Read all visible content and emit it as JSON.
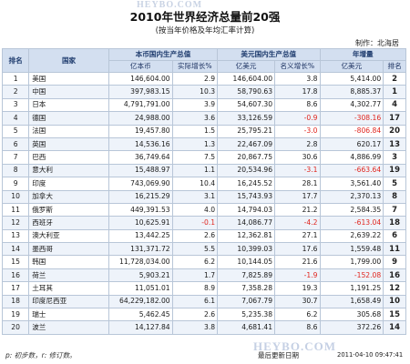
{
  "watermark_text": "HEYBO.COM",
  "title": "2010年世界经济总量前20强",
  "subtitle": "(按当年价格及年均汇率计算)",
  "maker": "制作：北海居",
  "headers": {
    "rank": "排名",
    "country": "国家",
    "local_gdp_group": "本币国内生产总值",
    "local_gdp": "亿本币",
    "real_growth": "实际增长%",
    "usd_gdp_group": "美元国内生产总值",
    "usd_gdp": "亿美元",
    "nominal_growth": "名义增长%",
    "annual_increase_group": "年增量",
    "annual_increase": "亿美元",
    "rank_change": "排名"
  },
  "rows": [
    {
      "rank": "1",
      "country": "美国",
      "local": "146,604.00",
      "real": "2.9",
      "usd": "146,604.00",
      "nominal": "3.8",
      "increase": "5,414.00",
      "prev_rank": "2",
      "negative": false
    },
    {
      "rank": "2",
      "country": "中国",
      "local": "397,983.15",
      "real": "10.3",
      "usd": "58,790.63",
      "nominal": "17.8",
      "increase": "8,885.37",
      "prev_rank": "1",
      "negative": false
    },
    {
      "rank": "3",
      "country": "日本",
      "local": "4,791,791.00",
      "real": "3.9",
      "usd": "54,607.30",
      "nominal": "8.6",
      "increase": "4,302.77",
      "prev_rank": "4",
      "negative": false
    },
    {
      "rank": "4",
      "country": "德国",
      "local": "24,988.00",
      "real": "3.6",
      "usd": "33,126.59",
      "nominal": "-0.9",
      "increase": "-308.16",
      "prev_rank": "17",
      "negative": true
    },
    {
      "rank": "5",
      "country": "法国",
      "local": "19,457.80",
      "real": "1.5",
      "usd": "25,795.21",
      "nominal": "-3.0",
      "increase": "-806.84",
      "prev_rank": "20",
      "negative": true
    },
    {
      "rank": "6",
      "country": "英国",
      "local": "14,536.16",
      "real": "1.3",
      "usd": "22,467.09",
      "nominal": "2.8",
      "increase": "620.17",
      "prev_rank": "13",
      "negative": false
    },
    {
      "rank": "7",
      "country": "巴西",
      "local": "36,749.64",
      "real": "7.5",
      "usd": "20,867.75",
      "nominal": "30.6",
      "increase": "4,886.99",
      "prev_rank": "3",
      "negative": false
    },
    {
      "rank": "8",
      "country": "意大利",
      "local": "15,488.97",
      "real": "1.1",
      "usd": "20,534.96",
      "nominal": "-3.1",
      "increase": "-663.64",
      "prev_rank": "19",
      "negative": true
    },
    {
      "rank": "9",
      "country": "印度",
      "local": "743,069.90",
      "real": "10.4",
      "usd": "16,245.52",
      "nominal": "28.1",
      "increase": "3,561.40",
      "prev_rank": "5",
      "negative": false
    },
    {
      "rank": "10",
      "country": "加拿大",
      "local": "16,215.29",
      "real": "3.1",
      "usd": "15,743.93",
      "nominal": "17.7",
      "increase": "2,370.13",
      "prev_rank": "8",
      "negative": false
    },
    {
      "rank": "11",
      "country": "俄罗斯",
      "local": "449,391.53",
      "real": "4.0",
      "usd": "14,794.03",
      "nominal": "21.2",
      "increase": "2,584.35",
      "prev_rank": "7",
      "negative": false
    },
    {
      "rank": "12",
      "country": "西班牙",
      "local": "10,625.91",
      "real": "-0.1",
      "usd": "14,086.77",
      "nominal": "-4.2",
      "increase": "-613.04",
      "prev_rank": "18",
      "negative": true
    },
    {
      "rank": "13",
      "country": "澳大利亚",
      "local": "13,442.25",
      "real": "2.6",
      "usd": "12,362.81",
      "nominal": "27.1",
      "increase": "2,639.22",
      "prev_rank": "6",
      "negative": false
    },
    {
      "rank": "14",
      "country": "墨西哥",
      "local": "131,371.72",
      "real": "5.5",
      "usd": "10,399.03",
      "nominal": "17.6",
      "increase": "1,559.48",
      "prev_rank": "11",
      "negative": false
    },
    {
      "rank": "15",
      "country": "韩国",
      "local": "11,728,034.00",
      "real": "6.2",
      "usd": "10,144.05",
      "nominal": "21.6",
      "increase": "1,799.00",
      "prev_rank": "9",
      "negative": false
    },
    {
      "rank": "16",
      "country": "荷兰",
      "local": "5,903.21",
      "real": "1.7",
      "usd": "7,825.89",
      "nominal": "-1.9",
      "increase": "-152.08",
      "prev_rank": "16",
      "negative": true
    },
    {
      "rank": "17",
      "country": "土耳其",
      "local": "11,051.01",
      "real": "8.9",
      "usd": "7,358.28",
      "nominal": "19.3",
      "increase": "1,191.25",
      "prev_rank": "12",
      "negative": false
    },
    {
      "rank": "18",
      "country": "印度尼西亚",
      "local": "64,229,182.00",
      "real": "6.1",
      "usd": "7,067.79",
      "nominal": "30.7",
      "increase": "1,658.49",
      "prev_rank": "10",
      "negative": false
    },
    {
      "rank": "19",
      "country": "瑞士",
      "local": "5,462.45",
      "real": "2.6",
      "usd": "5,235.38",
      "nominal": "6.2",
      "increase": "305.68",
      "prev_rank": "15",
      "negative": false
    },
    {
      "rank": "20",
      "country": "波兰",
      "local": "14,127.84",
      "real": "3.8",
      "usd": "4,681.41",
      "nominal": "8.6",
      "increase": "372.26",
      "prev_rank": "14",
      "negative": false
    }
  ],
  "footer": {
    "note": "p: 初步数，r: 修订数。",
    "updated_label": "最后更新日期",
    "updated_value": "2011-04-10 09:47:41"
  },
  "colors": {
    "header_bg": "#d3dff0",
    "header_text": "#1f3c6e",
    "negative": "#e0261f",
    "row_alt": "#eef3fa"
  }
}
